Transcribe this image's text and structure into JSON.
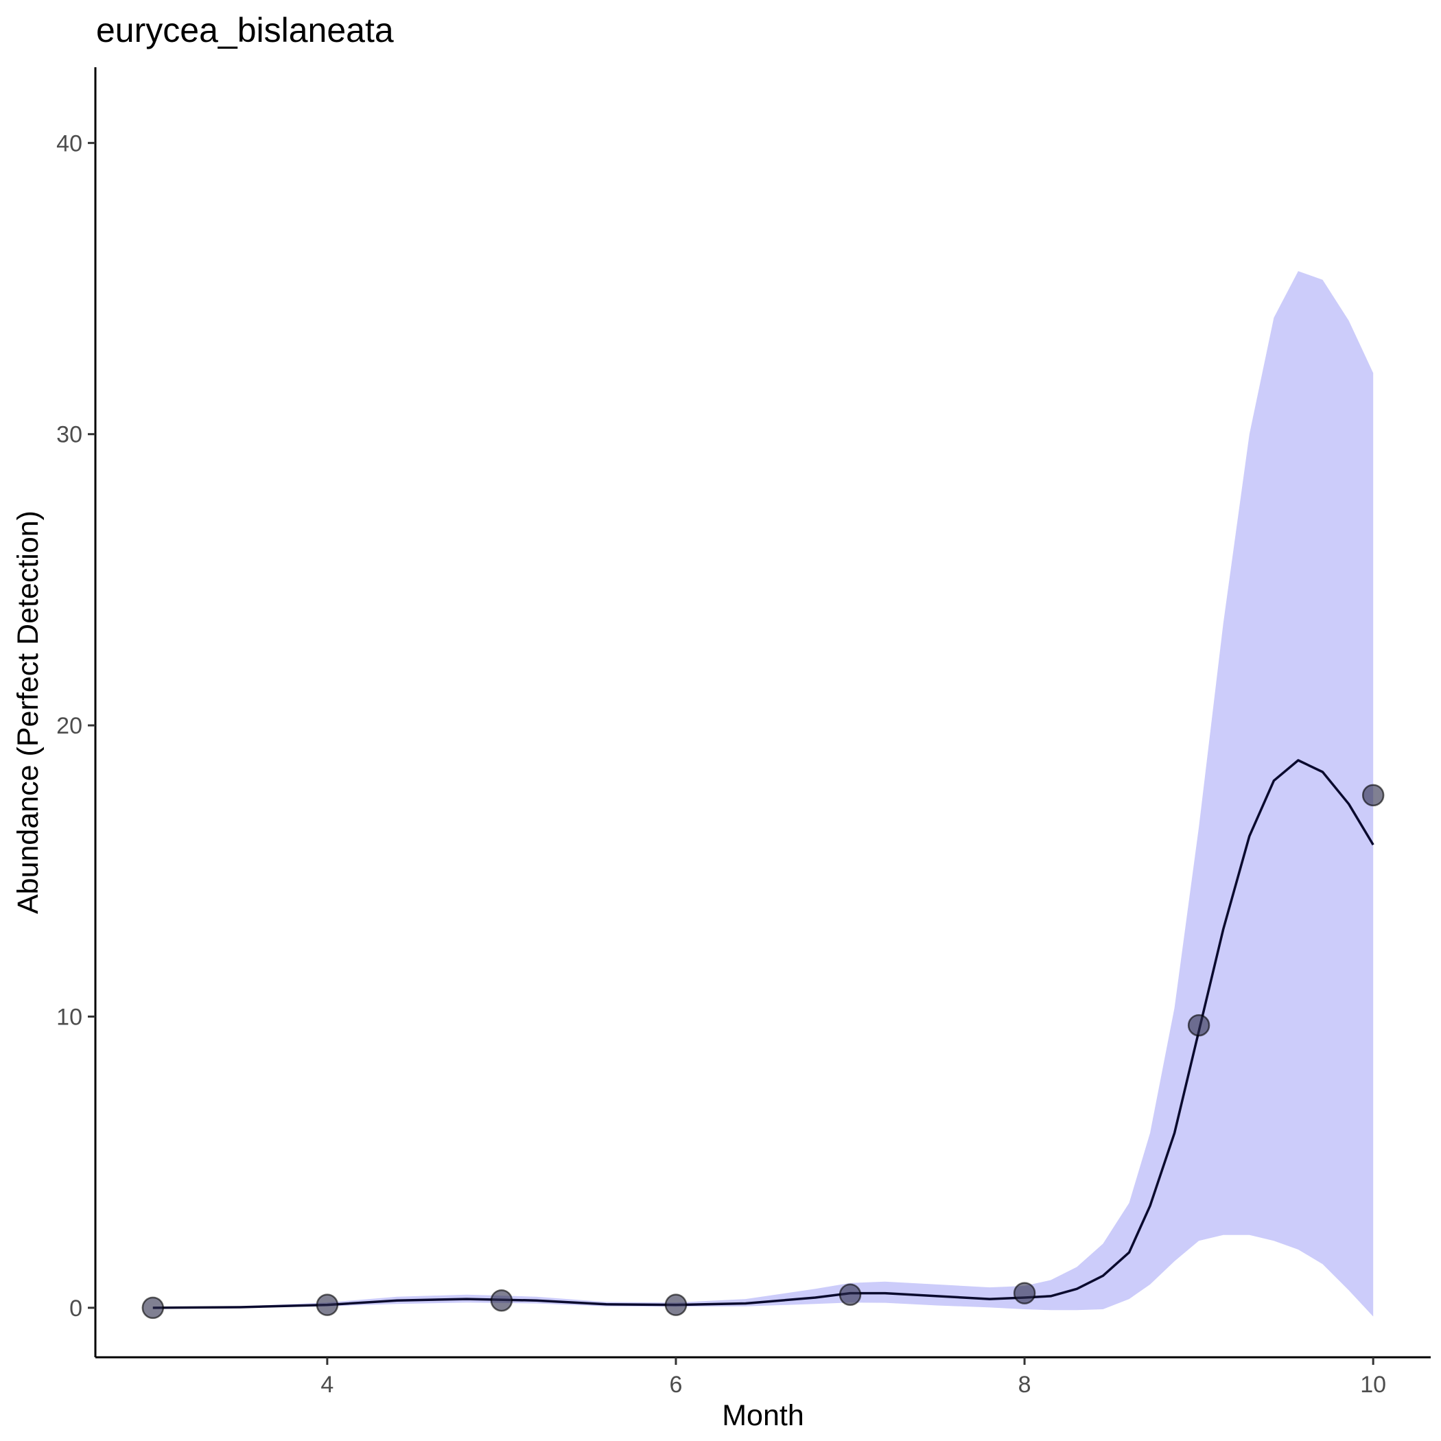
{
  "chart_data": {
    "type": "line",
    "title": "eurycea_bislaneata",
    "xlabel": "Month",
    "ylabel": "Abundance (Perfect Detection)",
    "xlim": [
      2.67,
      10.33
    ],
    "ylim": [
      -1.7,
      42.6
    ],
    "x_ticks": [
      4,
      6,
      8,
      10
    ],
    "y_ticks": [
      0,
      10,
      20,
      30,
      40
    ],
    "grid": false,
    "legend": "none",
    "colors": {
      "band": "#ccccfa",
      "line": "#0a0a2e",
      "points": "#2b2b4a"
    },
    "observed": {
      "x": [
        3,
        4,
        5,
        6,
        7,
        8,
        9,
        10
      ],
      "y": [
        0.0,
        0.1,
        0.25,
        0.1,
        0.45,
        0.5,
        9.7,
        17.6
      ]
    },
    "fit": {
      "x": [
        3,
        3.5,
        4,
        4.4,
        4.8,
        5.2,
        5.6,
        6,
        6.4,
        6.8,
        7,
        7.2,
        7.5,
        7.8,
        8,
        8.15,
        8.3,
        8.45,
        8.6,
        8.72,
        8.86,
        9,
        9.14,
        9.29,
        9.43,
        9.57,
        9.71,
        9.86,
        10
      ],
      "y": [
        0.0,
        0.02,
        0.1,
        0.25,
        0.3,
        0.25,
        0.12,
        0.1,
        0.15,
        0.35,
        0.5,
        0.5,
        0.4,
        0.3,
        0.35,
        0.4,
        0.65,
        1.1,
        1.9,
        3.5,
        6.0,
        9.5,
        13.0,
        16.2,
        18.1,
        18.8,
        18.4,
        17.3,
        15.9
      ]
    },
    "interval": {
      "x": [
        3,
        3.5,
        4,
        4.4,
        4.8,
        5.2,
        5.6,
        6,
        6.4,
        6.8,
        7,
        7.2,
        7.5,
        7.8,
        8,
        8.15,
        8.3,
        8.45,
        8.6,
        8.72,
        8.86,
        9,
        9.14,
        9.29,
        9.43,
        9.57,
        9.71,
        9.86,
        10
      ],
      "upper": [
        0.03,
        0.05,
        0.18,
        0.38,
        0.45,
        0.38,
        0.2,
        0.18,
        0.3,
        0.65,
        0.85,
        0.9,
        0.8,
        0.7,
        0.75,
        0.95,
        1.4,
        2.2,
        3.6,
        6.0,
        10.3,
        16.5,
        23.5,
        30.0,
        34.0,
        35.6,
        35.3,
        33.9,
        32.1
      ],
      "lower": [
        0.0,
        0.0,
        0.05,
        0.13,
        0.18,
        0.15,
        0.05,
        0.04,
        0.05,
        0.13,
        0.18,
        0.17,
        0.08,
        0.01,
        -0.05,
        -0.08,
        -0.08,
        -0.05,
        0.3,
        0.8,
        1.6,
        2.3,
        2.5,
        2.5,
        2.3,
        2.0,
        1.5,
        0.6,
        -0.3
      ]
    }
  }
}
